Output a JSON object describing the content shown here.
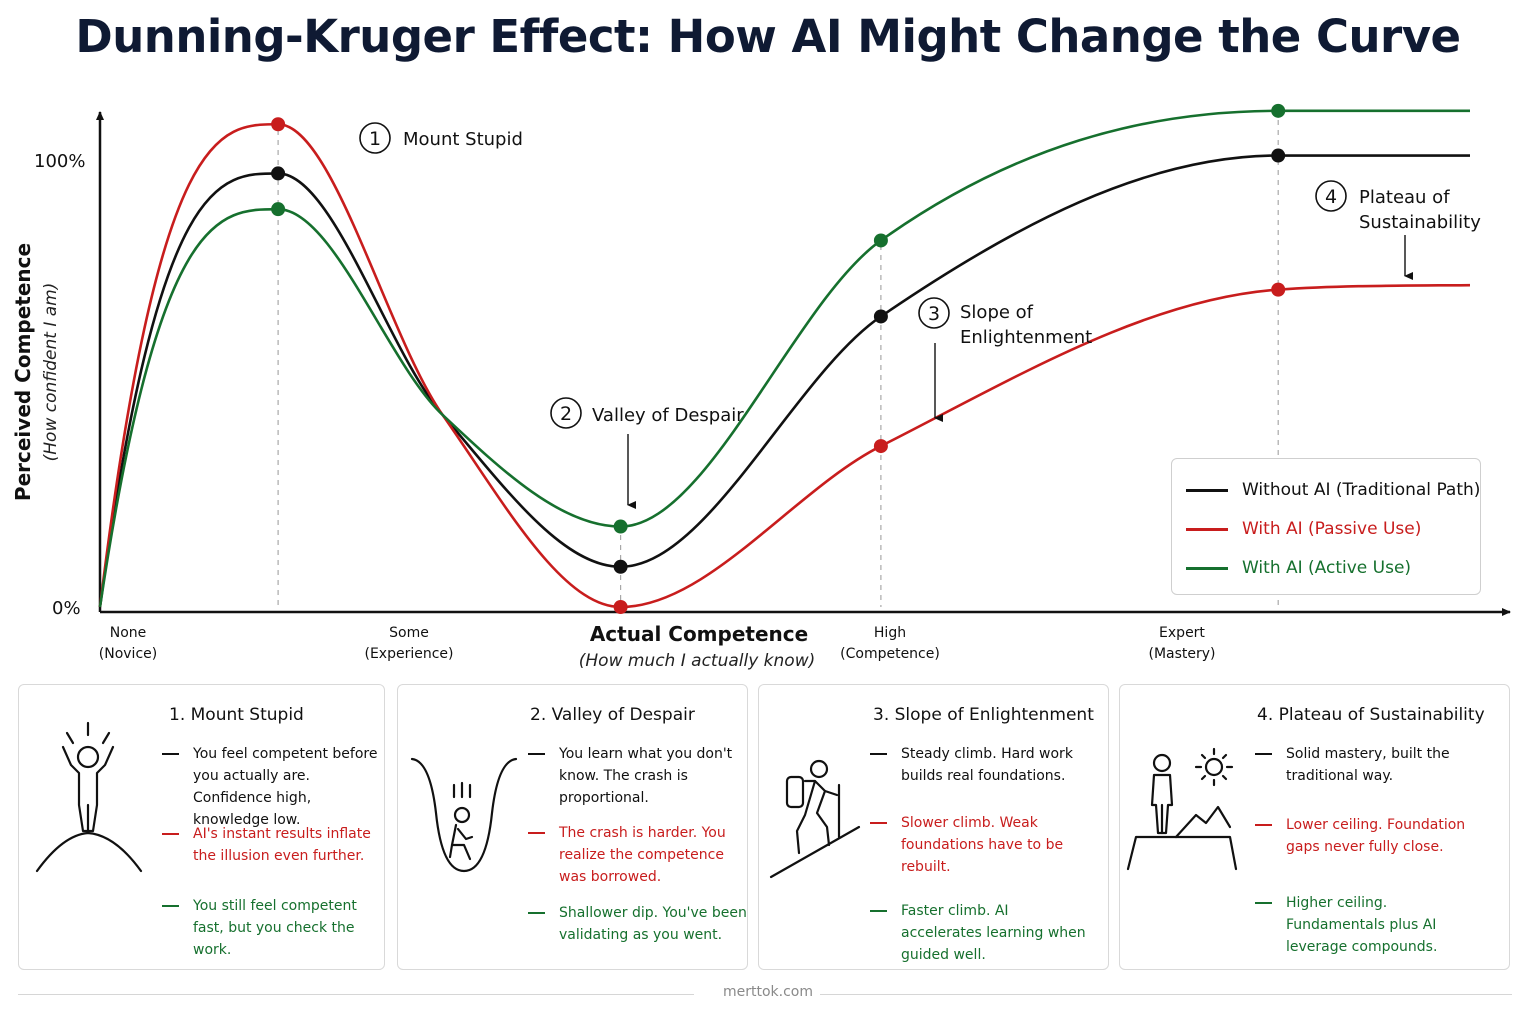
{
  "title": "Dunning-Kruger Effect: How AI Might Change the Curve",
  "colors": {
    "black": "#111111",
    "red": "#c81d1d",
    "green": "#16702e",
    "grid": "#a8a8a8"
  },
  "chart_data": {
    "type": "line",
    "ylabel": "Perceived Competence",
    "ylabel_sub": "(How confident I am)",
    "xlabel": "Actual Competence",
    "xlabel_sub": "(How much I actually know)",
    "y_ticks": [
      "100%",
      "0%"
    ],
    "x_ticks": [
      {
        "label": "None",
        "sub": "(Novice)"
      },
      {
        "label": "Some",
        "sub": "(Experience)"
      },
      {
        "label": "High",
        "sub": "(Competence)"
      },
      {
        "label": "Expert",
        "sub": "(Mastery)"
      }
    ],
    "stage_x": [
      0.13,
      0.38,
      0.57,
      0.86
    ],
    "series": [
      {
        "name": "Without AI (Traditional Path)",
        "color": "#111111",
        "points": [
          [
            0,
            0
          ],
          [
            0.13,
            97
          ],
          [
            0.25,
            43
          ],
          [
            0.38,
            9
          ],
          [
            0.57,
            65
          ],
          [
            0.86,
            101
          ],
          [
            1.0,
            101
          ]
        ]
      },
      {
        "name": "With AI (Passive Use)",
        "color": "#c81d1d",
        "points": [
          [
            0,
            0
          ],
          [
            0.13,
            108
          ],
          [
            0.25,
            43
          ],
          [
            0.38,
            0
          ],
          [
            0.57,
            36
          ],
          [
            0.86,
            71
          ],
          [
            1.0,
            72
          ]
        ]
      },
      {
        "name": "With AI (Active Use)",
        "color": "#16702e",
        "points": [
          [
            0,
            0
          ],
          [
            0.13,
            89
          ],
          [
            0.25,
            43
          ],
          [
            0.38,
            18
          ],
          [
            0.57,
            82
          ],
          [
            0.86,
            111
          ],
          [
            1.0,
            111
          ]
        ]
      }
    ],
    "annotations": [
      {
        "number": "1",
        "text": [
          "Mount Stupid"
        ]
      },
      {
        "number": "2",
        "text": [
          "Valley of Despair"
        ]
      },
      {
        "number": "3",
        "text": [
          "Slope of",
          "Enlightenment"
        ]
      },
      {
        "number": "4",
        "text": [
          "Plateau of",
          "Sustainability"
        ]
      }
    ],
    "grid": false,
    "legend_position": "right"
  },
  "cards": [
    {
      "title": "1.  Mount Stupid",
      "icon": "person-on-peak-icon",
      "items": [
        {
          "color": "black",
          "text": "You feel competent before you actually are. Confidence high, knowledge low."
        },
        {
          "color": "red",
          "text": "AI's instant results inflate the illusion even further."
        },
        {
          "color": "green",
          "text": "You still feel competent fast, but you check the work."
        }
      ]
    },
    {
      "title": "2.  Valley of Despair",
      "icon": "person-in-valley-icon",
      "items": [
        {
          "color": "black",
          "text": "You learn what you don't know. The crash is proportional."
        },
        {
          "color": "red",
          "text": "The crash is harder. You realize the competence was borrowed."
        },
        {
          "color": "green",
          "text": "Shallower dip. You've been validating as you went."
        }
      ]
    },
    {
      "title": "3.  Slope of Enlightenment",
      "icon": "hiker-climbing-icon",
      "items": [
        {
          "color": "black",
          "text": "Steady climb. Hard work builds real foundations."
        },
        {
          "color": "red",
          "text": "Slower climb. Weak foundations have to be rebuilt."
        },
        {
          "color": "green",
          "text": "Faster climb. AI accelerates learning when guided well."
        }
      ]
    },
    {
      "title": "4.  Plateau of Sustainability",
      "icon": "person-on-plateau-icon",
      "items": [
        {
          "color": "black",
          "text": "Solid mastery, built the traditional way."
        },
        {
          "color": "red",
          "text": "Lower ceiling. Foundation gaps never fully close."
        },
        {
          "color": "green",
          "text": "Higher ceiling. Fundamentals plus AI leverage compounds."
        }
      ]
    }
  ],
  "footer": "merttok.com"
}
